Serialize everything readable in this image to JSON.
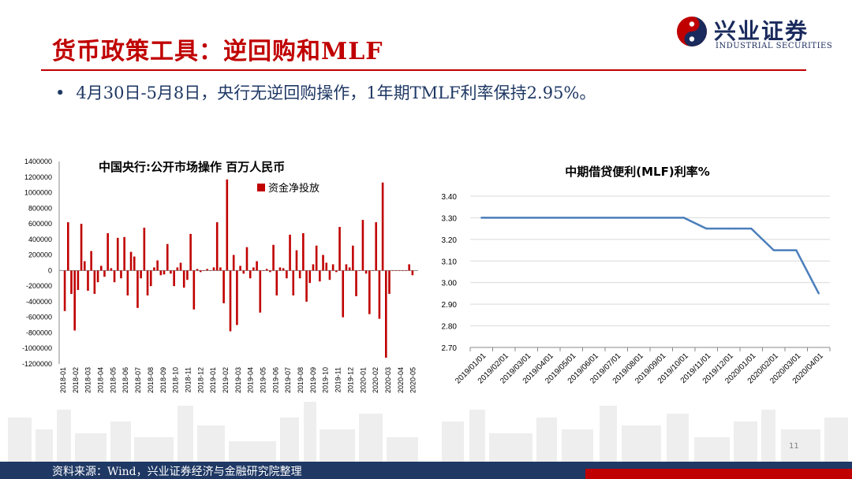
{
  "header": {
    "title": "货币政策工具：逆回购和MLF",
    "logo_cn": "兴业证券",
    "logo_en": "INDUSTRIAL SECURITIES"
  },
  "bullet": {
    "marker": "•",
    "text": "4月30日-5月8日，央行无逆回购操作，1年期TMLF利率保持2.95%。"
  },
  "footer": {
    "source": "资料来源：Wind，兴业证券经济与金融研究院整理",
    "page": "11"
  },
  "colors": {
    "brand_red": "#c00000",
    "brand_navy": "#1f3864",
    "bar_red": "#c00000",
    "line_blue": "#4a7ebb"
  },
  "chart_data": [
    {
      "type": "bar",
      "title": "中国央行:公开市场操作 百万人民币",
      "legend": "资金净投放",
      "legend_position": "top-right",
      "ylim": [
        -1200000,
        1400000
      ],
      "yticks": [
        "1400000",
        "1200000",
        "1000000",
        "800000",
        "600000",
        "400000",
        "200000",
        "0",
        "-200000",
        "-400000",
        "-600000",
        "-800000",
        "-1000000",
        "-1200000"
      ],
      "xticks": [
        "2018-01",
        "2018-02",
        "2018-03",
        "2018-04",
        "2018-05",
        "2018-06",
        "2018-07",
        "2018-08",
        "2018-09",
        "2018-10",
        "2018-11",
        "2018-12",
        "2019-01",
        "2019-02",
        "2019-03",
        "2019-04",
        "2019-05",
        "2019-06",
        "2019-07",
        "2019-08",
        "2019-09",
        "2019-10",
        "2019-11",
        "2019-12",
        "2020-01",
        "2020-02",
        "2020-03",
        "2020-04",
        "2020-05"
      ],
      "values": [
        -520000,
        620000,
        -300000,
        -770000,
        -250000,
        600000,
        120000,
        -260000,
        250000,
        -300000,
        -150000,
        60000,
        -80000,
        480000,
        30000,
        -150000,
        420000,
        -100000,
        430000,
        -320000,
        240000,
        180000,
        -480000,
        -100000,
        550000,
        -320000,
        -200000,
        40000,
        130000,
        -60000,
        -50000,
        340000,
        -40000,
        -200000,
        40000,
        100000,
        -220000,
        -120000,
        470000,
        -500000,
        20000,
        -20000,
        0,
        20000,
        0,
        40000,
        620000,
        40000,
        -420000,
        1170000,
        -780000,
        200000,
        -700000,
        60000,
        -40000,
        300000,
        -100000,
        40000,
        120000,
        -540000,
        0,
        20000,
        -20000,
        330000,
        -320000,
        40000,
        30000,
        -100000,
        460000,
        -320000,
        260000,
        -100000,
        480000,
        -400000,
        -160000,
        80000,
        320000,
        -140000,
        200000,
        100000,
        -120000,
        80000,
        -20000,
        560000,
        -600000,
        80000,
        40000,
        320000,
        -330000,
        0,
        650000,
        -40000,
        -560000,
        0,
        620000,
        -620000,
        1130000,
        -1120000,
        -300000,
        0,
        0,
        0,
        0,
        0,
        80000,
        -60000
      ],
      "values_note": ""
    },
    {
      "type": "line",
      "title": "中期借贷便利(MLF)利率%",
      "ylim": [
        2.7,
        3.4
      ],
      "yticks": [
        "3.40",
        "3.30",
        "3.20",
        "3.10",
        "3.00",
        "2.90",
        "2.80",
        "2.70"
      ],
      "x": [
        "2019/01/01",
        "2019/02/01",
        "2019/03/01",
        "2019/04/01",
        "2019/05/01",
        "2019/06/01",
        "2019/07/01",
        "2019/08/01",
        "2019/09/01",
        "2019/10/01",
        "2019/11/01",
        "2019/12/01",
        "2020/01/01",
        "2020/02/01",
        "2020/03/01",
        "2020/04/01"
      ],
      "xticks": [
        "2019/01/01",
        "2019/02/01",
        "2019/03/01",
        "2019/04/01",
        "2019/05/01",
        "2019/06/01",
        "2019/07/01",
        "2019/08/01",
        "2019/09/01",
        "2019/10/01",
        "2019/11/01",
        "2019/12/01",
        "2020/01/01",
        "2020/02/01",
        "2020/03/01",
        "2020/04/01"
      ],
      "series": [
        {
          "values": [
            3.3,
            3.3,
            3.3,
            3.3,
            3.3,
            3.3,
            3.3,
            3.3,
            3.3,
            3.3,
            3.25,
            3.25,
            3.25,
            3.15,
            3.15,
            2.95
          ]
        }
      ]
    }
  ]
}
